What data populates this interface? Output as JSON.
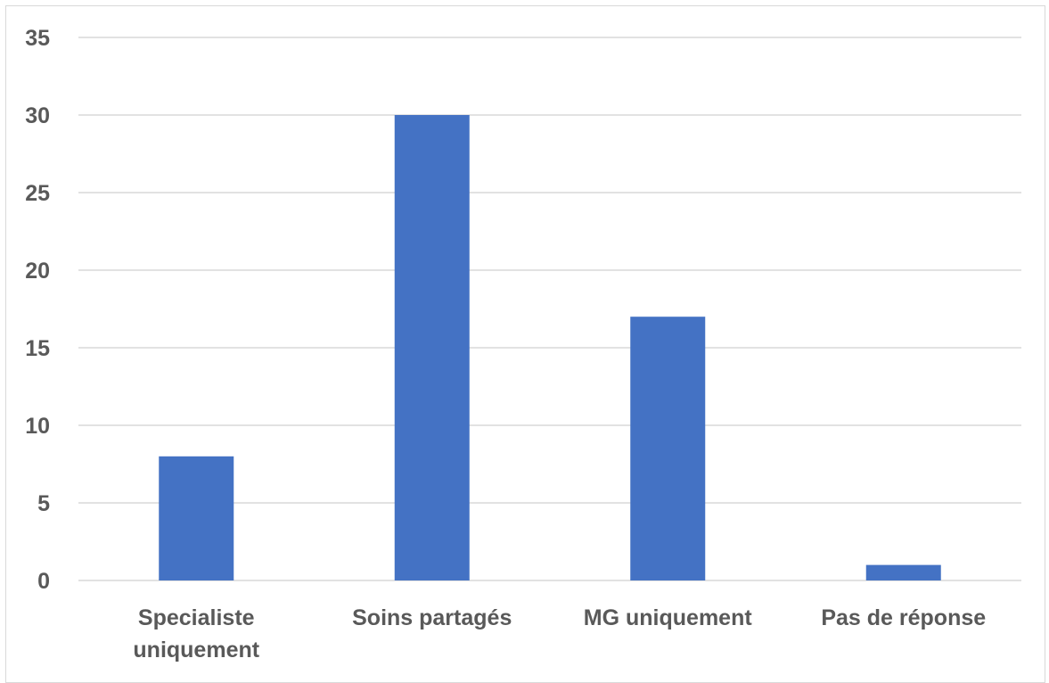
{
  "chart_data": {
    "type": "bar",
    "title": "",
    "xlabel": "",
    "ylabel": "",
    "categories": [
      [
        "Specialiste",
        "uniquement"
      ],
      [
        "Soins partagés"
      ],
      [
        "MG uniquement"
      ],
      [
        "Pas de réponse"
      ]
    ],
    "values": [
      8,
      30,
      17,
      1
    ],
    "ylim": [
      0,
      35
    ],
    "yticks": [
      0,
      5,
      10,
      15,
      20,
      25,
      30,
      35
    ],
    "grid": true,
    "legend": "none",
    "colors": {
      "bar": "#4472C4",
      "grid": "#d9d9d9",
      "axis": "#d9d9d9",
      "text": "#595959"
    }
  }
}
